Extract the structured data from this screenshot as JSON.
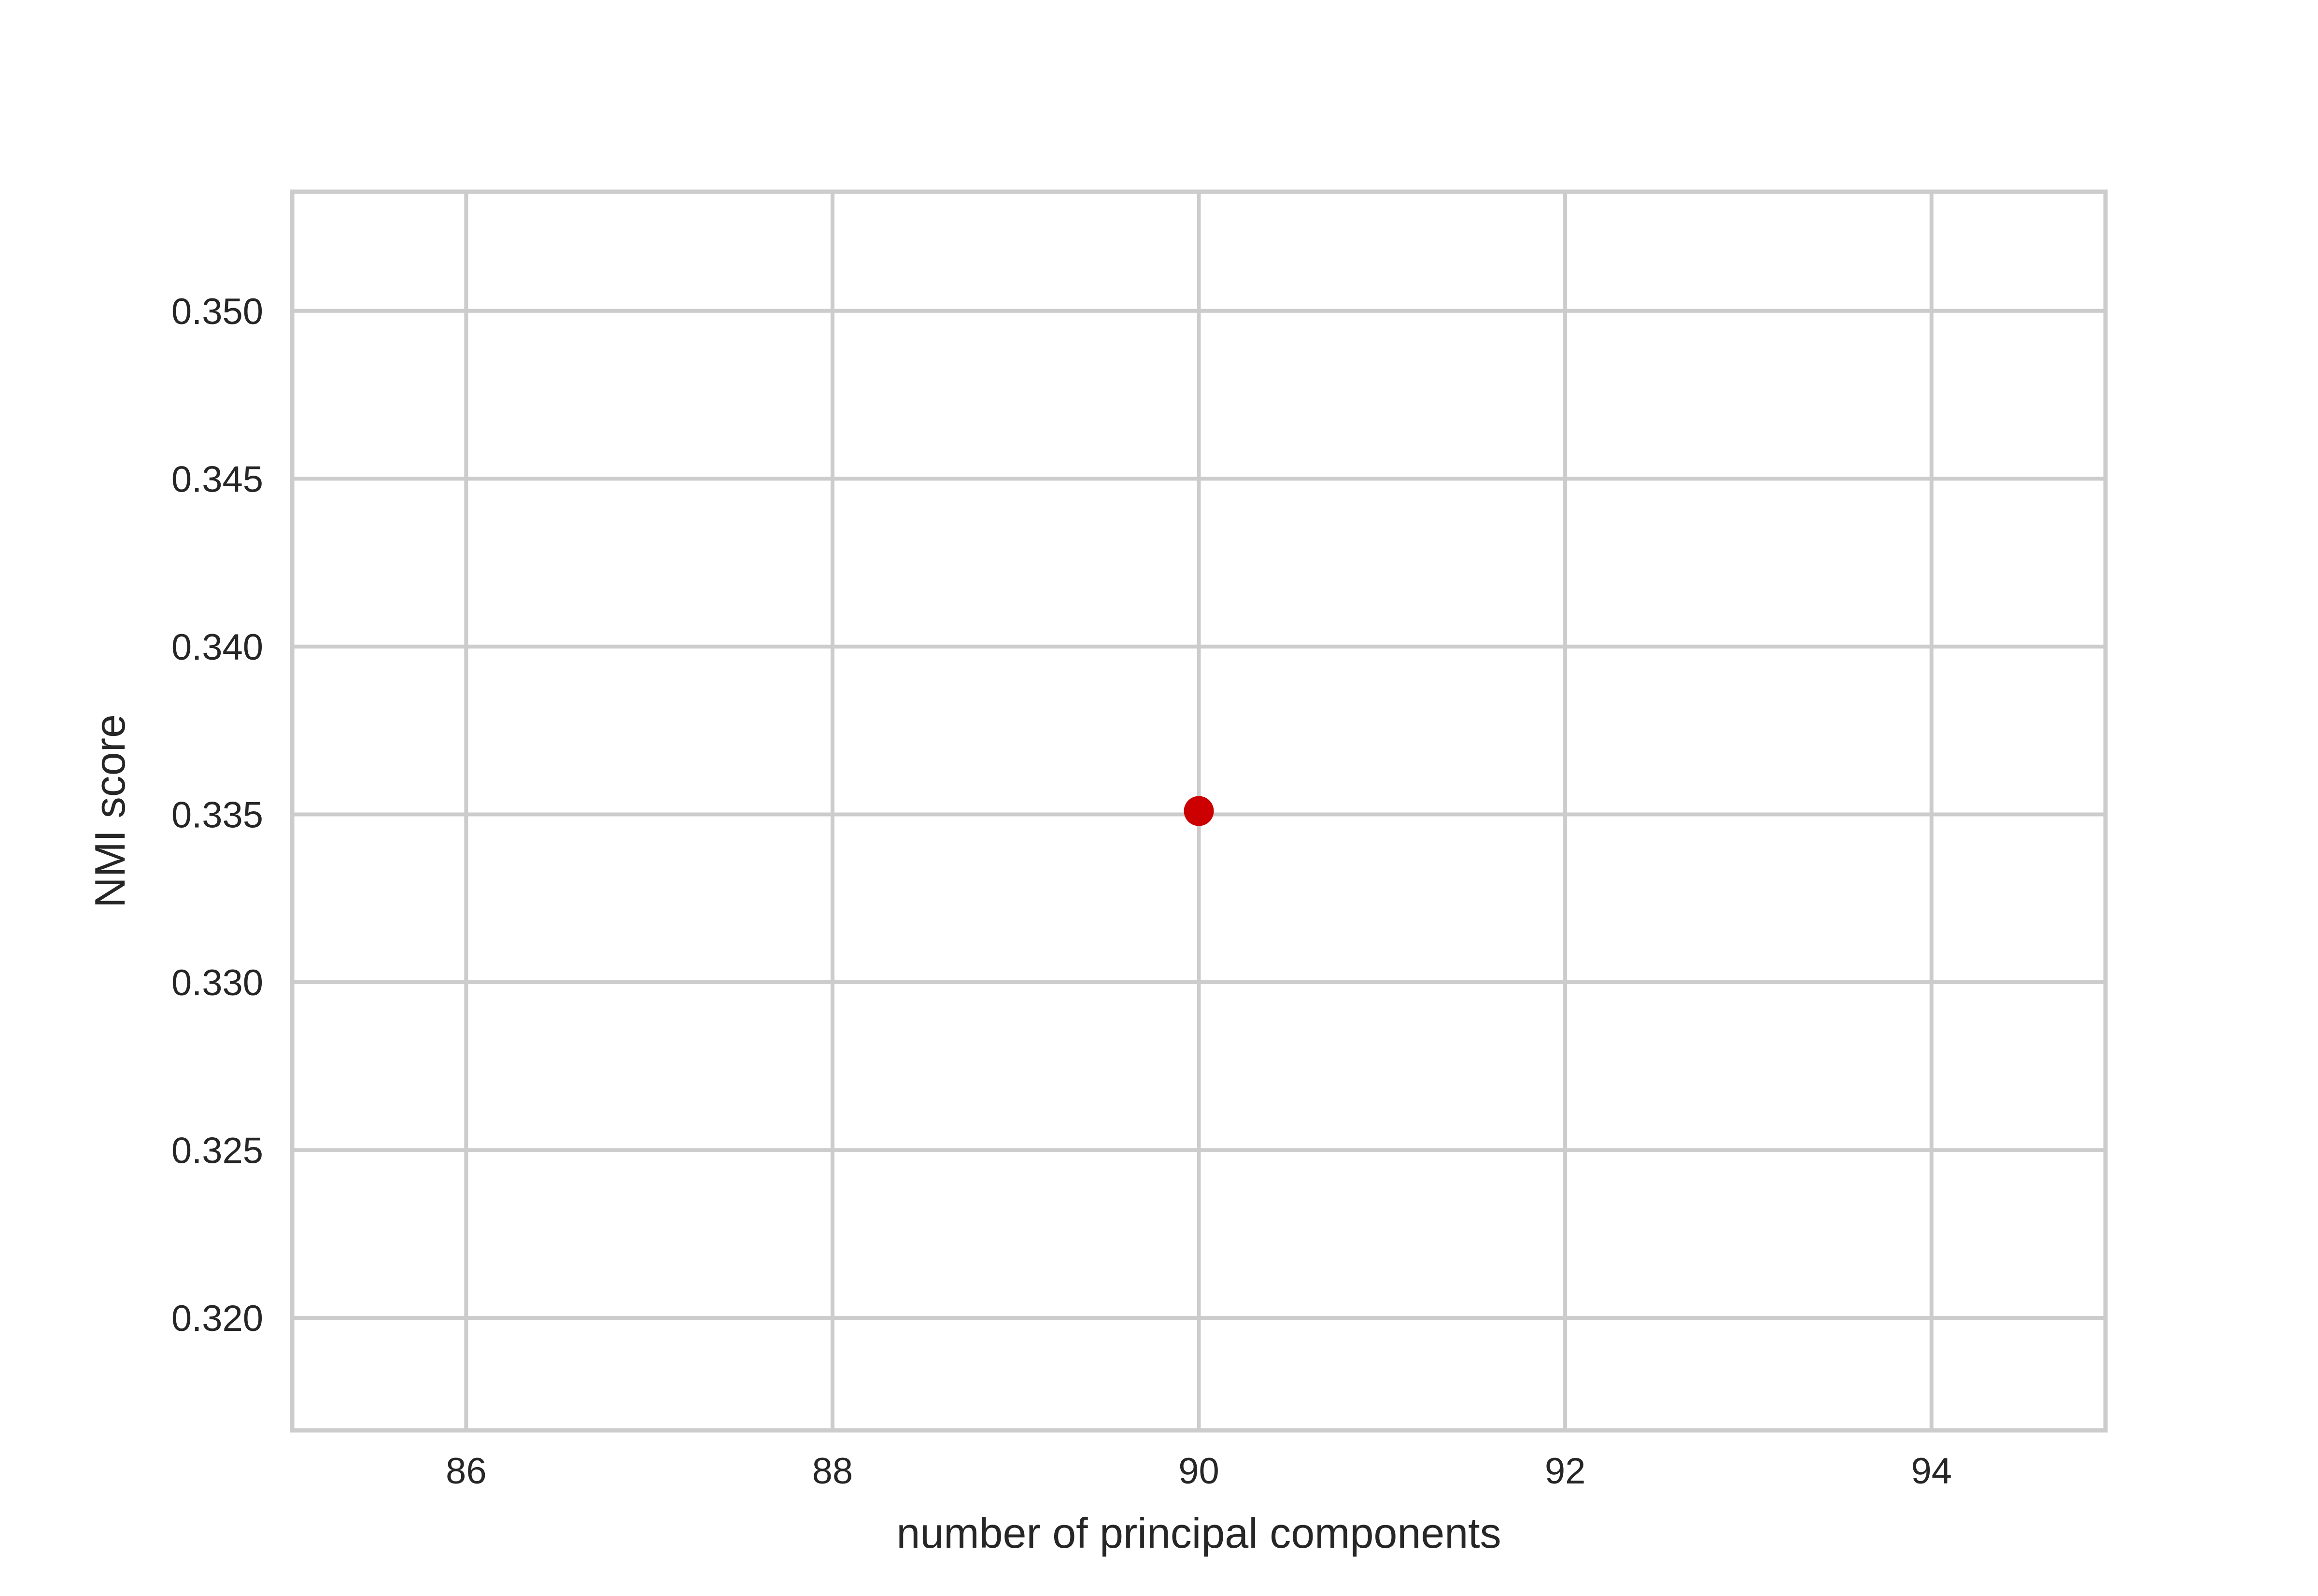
{
  "chart_data": {
    "type": "scatter",
    "title": "",
    "xlabel": "number of principal components",
    "ylabel": "NMI score",
    "xlim": [
      85.05,
      94.95
    ],
    "ylim": [
      0.31665,
      0.35355
    ],
    "xticks": [
      86,
      88,
      90,
      92,
      94
    ],
    "xtick_labels": [
      "86",
      "88",
      "90",
      "92",
      "94"
    ],
    "yticks": [
      0.32,
      0.325,
      0.33,
      0.335,
      0.34,
      0.345,
      0.35
    ],
    "ytick_labels": [
      "0.320",
      "0.325",
      "0.330",
      "0.335",
      "0.340",
      "0.345",
      "0.350"
    ],
    "grid": true,
    "series": [
      {
        "color": "#cc0000",
        "points": [
          {
            "x": 90,
            "y": 0.3351
          }
        ]
      }
    ]
  }
}
